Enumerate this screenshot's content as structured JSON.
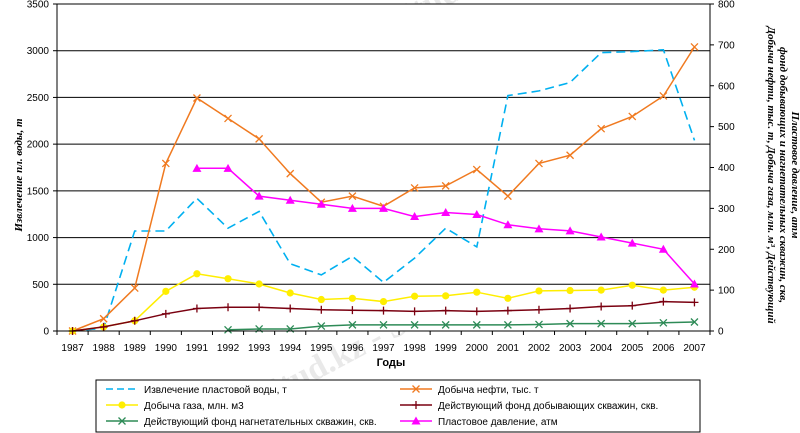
{
  "chart_data": {
    "type": "line",
    "xlabel": "Годы",
    "ylabel_left": "Извлечение пл. воды, т",
    "ylabel_right_lines": [
      "Добыча нефти, тыс. т, Добыча газа, млн. м³, Действующий",
      "фонд добывающих и нагнетательных скважин, скв,",
      "Пластовое давление, атм"
    ],
    "x": [
      1987,
      1988,
      1989,
      1990,
      1991,
      1992,
      1993,
      1994,
      1995,
      1996,
      1997,
      1998,
      1999,
      2000,
      2001,
      2002,
      2003,
      2004,
      2005,
      2006,
      2007
    ],
    "ylim_left": [
      0,
      3500
    ],
    "ylim_right": [
      0,
      800
    ],
    "left_ticks": [
      0,
      500,
      1000,
      1500,
      2000,
      2500,
      3000,
      3500
    ],
    "right_ticks": [
      0,
      100,
      200,
      300,
      400,
      500,
      600,
      700,
      800
    ],
    "grid": true,
    "legend_position": "bottom",
    "series": [
      {
        "name": "Извлечение пластовой воды, т",
        "axis": "left",
        "color": "#00b0f0",
        "style": "dash",
        "marker": "none",
        "values": [
          0,
          30,
          1070,
          1070,
          1420,
          1100,
          1280,
          720,
          600,
          800,
          520,
          780,
          1100,
          900,
          2520,
          2570,
          2660,
          2980,
          2990,
          3010,
          2040
        ]
      },
      {
        "name": "Добыча нефти, тыс. т",
        "axis": "right",
        "color": "#f07a20",
        "style": "solid",
        "marker": "x",
        "values": [
          0,
          30,
          105,
          410,
          570,
          520,
          470,
          385,
          315,
          330,
          305,
          350,
          355,
          395,
          330,
          410,
          430,
          495,
          525,
          575,
          695
        ]
      },
      {
        "name": "Добыча газа, млн. м3",
        "axis": "right",
        "color": "#ffee00",
        "style": "solid",
        "marker": "dot",
        "values": [
          0,
          10,
          25,
          97,
          140,
          128,
          115,
          93,
          77,
          80,
          72,
          85,
          86,
          95,
          80,
          98,
          99,
          100,
          112,
          100,
          107
        ]
      },
      {
        "name": "Действующий фонд добывающих скважин, скв.",
        "axis": "right",
        "color": "#7a0010",
        "style": "solid",
        "marker": "plus",
        "values": [
          0,
          10,
          25,
          42,
          55,
          58,
          58,
          55,
          52,
          51,
          50,
          48,
          50,
          48,
          50,
          52,
          55,
          60,
          62,
          72,
          70
        ]
      },
      {
        "name": "Действующий фонд нагнетательных скважин, скв.",
        "axis": "right",
        "color": "#2e8b57",
        "style": "solid",
        "marker": "x",
        "values": [
          null,
          null,
          null,
          null,
          null,
          3,
          5,
          5,
          12,
          15,
          15,
          15,
          15,
          15,
          15,
          16,
          18,
          18,
          18,
          20,
          22
        ]
      },
      {
        "name": "Пластовое давление, атм",
        "axis": "right",
        "color": "#ff00ff",
        "style": "solid",
        "marker": "triangle",
        "values": [
          null,
          null,
          null,
          null,
          398,
          398,
          330,
          320,
          310,
          300,
          300,
          280,
          290,
          285,
          260,
          250,
          245,
          230,
          215,
          200,
          115
        ]
      }
    ]
  },
  "watermark": {
    "text": "Stud.kz - Stud.kz"
  }
}
